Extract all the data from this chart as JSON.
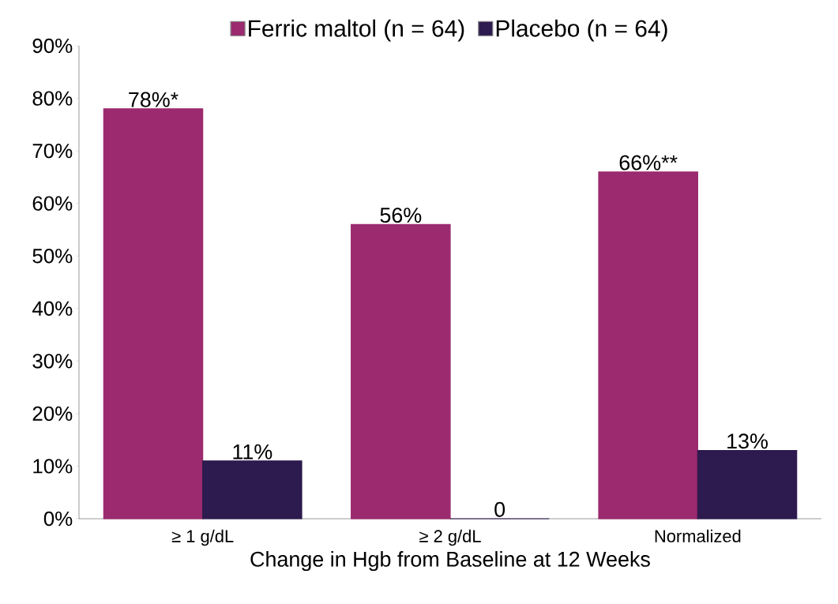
{
  "chart_data": {
    "type": "bar",
    "xlabel": "Change in Hgb from Baseline at 12 Weeks",
    "categories": [
      "≥ 1 g/dL",
      "≥ 2 g/dL",
      "Normalized"
    ],
    "series": [
      {
        "name": "Ferric maltol (n = 64)",
        "color": "#9b2a6e",
        "values": [
          78,
          56,
          66
        ],
        "value_labels": [
          "78%*",
          "56%",
          "66%**"
        ]
      },
      {
        "name": "Placebo (n = 64)",
        "color": "#2d1a4e",
        "values": [
          11,
          0,
          13
        ],
        "value_labels": [
          "11%",
          "0",
          "13%"
        ]
      }
    ],
    "ylim": [
      0,
      90
    ],
    "yticks": [
      {
        "value": 0,
        "label": "0%"
      },
      {
        "value": 10,
        "label": "10%"
      },
      {
        "value": 20,
        "label": "20%"
      },
      {
        "value": 30,
        "label": "30%"
      },
      {
        "value": 40,
        "label": "40%"
      },
      {
        "value": 50,
        "label": "50%"
      },
      {
        "value": 60,
        "label": "60%"
      },
      {
        "value": 70,
        "label": "70%"
      },
      {
        "value": 80,
        "label": "80%"
      },
      {
        "value": 90,
        "label": "90%"
      }
    ],
    "grid": false,
    "legend": "top"
  }
}
